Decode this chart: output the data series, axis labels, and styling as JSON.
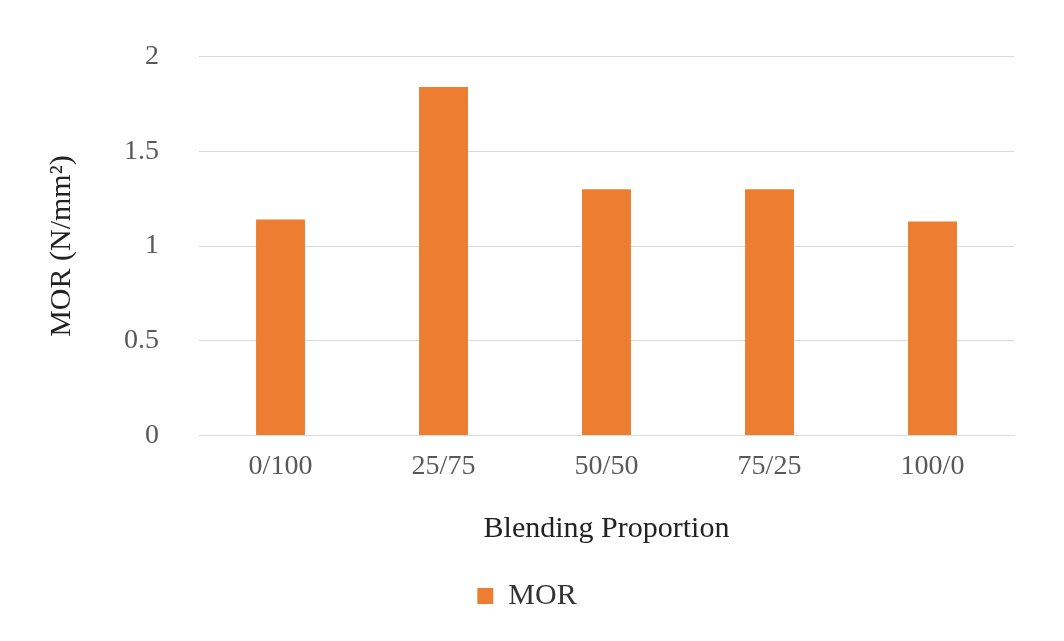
{
  "chart_data": {
    "type": "bar",
    "xlabel": "Blending Proportion",
    "ylabel": "MOR (N/mm²)",
    "categories": [
      "0/100",
      "25/75",
      "50/50",
      "75/25",
      "100/0"
    ],
    "series": [
      {
        "name": "MOR",
        "color": "#ed7d31",
        "values": [
          1.14,
          1.84,
          1.3,
          1.3,
          1.13
        ]
      }
    ],
    "ylim": [
      0,
      2
    ],
    "yticks": [
      0,
      0.5,
      1,
      1.5,
      2
    ],
    "grid": "y",
    "legend": "bottom"
  }
}
